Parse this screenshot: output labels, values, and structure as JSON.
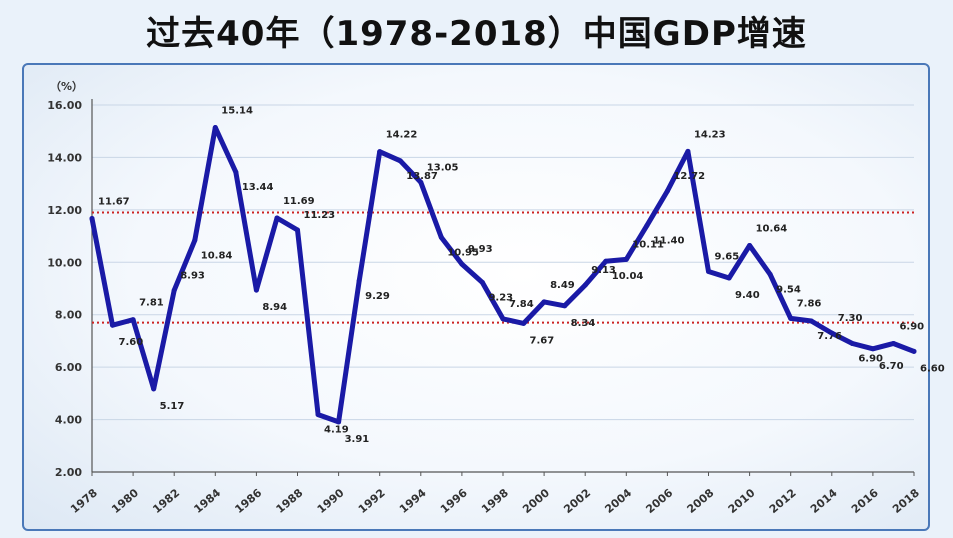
{
  "title": "过去40年（1978-2018）中国GDP增速",
  "chart_data": {
    "type": "line",
    "title": "过去40年（1978-2018）中国GDP增速",
    "ylabel": "（%）",
    "xlabel": "",
    "ylim": [
      2,
      16
    ],
    "yticks": [
      "2.00",
      "4.00",
      "6.00",
      "8.00",
      "10.00",
      "12.00",
      "14.00",
      "16.00"
    ],
    "x_ticks": [
      "1978",
      "1980",
      "1982",
      "1984",
      "1986",
      "1988",
      "1990",
      "1992",
      "1994",
      "1996",
      "1998",
      "2000",
      "2002",
      "2004",
      "2006",
      "2008",
      "2010",
      "2012",
      "2014",
      "2016",
      "2018"
    ],
    "x": [
      1978,
      1979,
      1980,
      1981,
      1982,
      1983,
      1984,
      1985,
      1986,
      1987,
      1988,
      1989,
      1990,
      1991,
      1992,
      1993,
      1994,
      1995,
      1996,
      1997,
      1998,
      1999,
      2000,
      2001,
      2002,
      2003,
      2004,
      2005,
      2006,
      2007,
      2008,
      2009,
      2010,
      2011,
      2012,
      2013,
      2014,
      2015,
      2016,
      2017,
      2018
    ],
    "series": [
      {
        "color": "#1a1aa6",
        "values": [
          11.67,
          7.6,
          7.81,
          5.17,
          8.93,
          10.84,
          15.14,
          13.44,
          8.94,
          11.69,
          11.23,
          4.19,
          3.91,
          9.29,
          14.22,
          13.87,
          13.05,
          10.95,
          9.93,
          9.23,
          7.84,
          7.67,
          8.49,
          8.34,
          9.13,
          10.04,
          10.11,
          11.4,
          12.72,
          14.23,
          9.65,
          9.4,
          10.64,
          9.54,
          7.86,
          7.76,
          7.3,
          6.9,
          6.7,
          6.9,
          6.6
        ],
        "labels": [
          "11.67",
          "7.60",
          "7.81",
          "5.17",
          "8.93",
          "10.84",
          "15.14",
          "13.44",
          "8.94",
          "11.69",
          "11.23",
          "4.19",
          "3.91",
          "9.29",
          "14.22",
          "13.87",
          "13.05",
          "10.95",
          "9.93",
          "9.23",
          "7.84",
          "7.67",
          "8.49",
          "8.34",
          "9.13",
          "10.04",
          "10.11",
          "11.40",
          "12.72",
          "14.23",
          "9.65",
          "9.40",
          "10.64",
          "9.54",
          "7.86",
          "7.76",
          "7.30",
          "6.90",
          "6.70",
          "6.90",
          "6.60"
        ]
      }
    ],
    "reference_lines": [
      {
        "y": 11.9,
        "color": "#cc2222",
        "style": "dotted"
      },
      {
        "y": 7.7,
        "color": "#cc2222",
        "style": "dotted"
      }
    ],
    "grid": "horizontal"
  }
}
